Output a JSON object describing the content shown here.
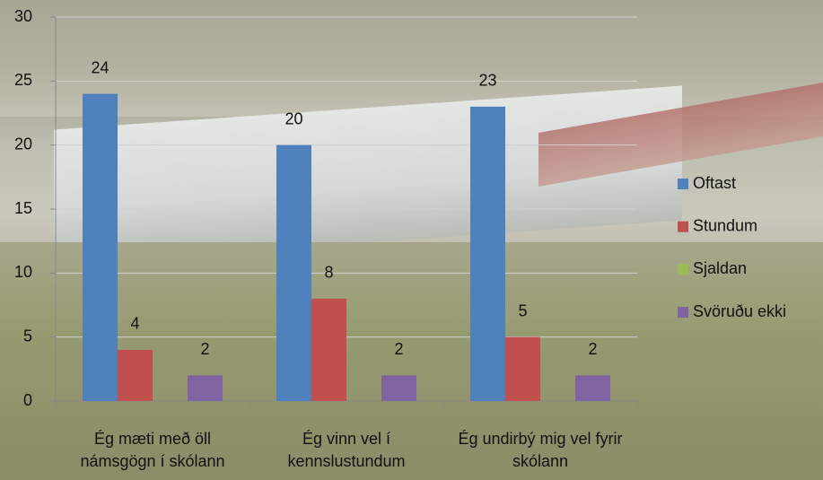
{
  "chart_data": {
    "type": "bar",
    "categories": [
      "Ég mæti með öll námsgögn í skólann",
      "Ég vinn vel í kennslustundum",
      "Ég undirbý mig vel fyrir skólann"
    ],
    "series": [
      {
        "name": "Oftast",
        "color": "#4f81bd",
        "values": [
          24,
          20,
          23
        ]
      },
      {
        "name": "Stundum",
        "color": "#c0504d",
        "values": [
          4,
          8,
          5
        ]
      },
      {
        "name": "Sjaldan",
        "color": "#9bbb59",
        "values": [
          null,
          null,
          null
        ]
      },
      {
        "name": "Svöruðu ekki",
        "color": "#8064a2",
        "values": [
          2,
          2,
          2
        ]
      }
    ],
    "ylim": [
      0,
      30
    ],
    "yticks": [
      0,
      5,
      10,
      15,
      20,
      25,
      30
    ],
    "grid": true,
    "legend": "right",
    "data_labels": true
  }
}
